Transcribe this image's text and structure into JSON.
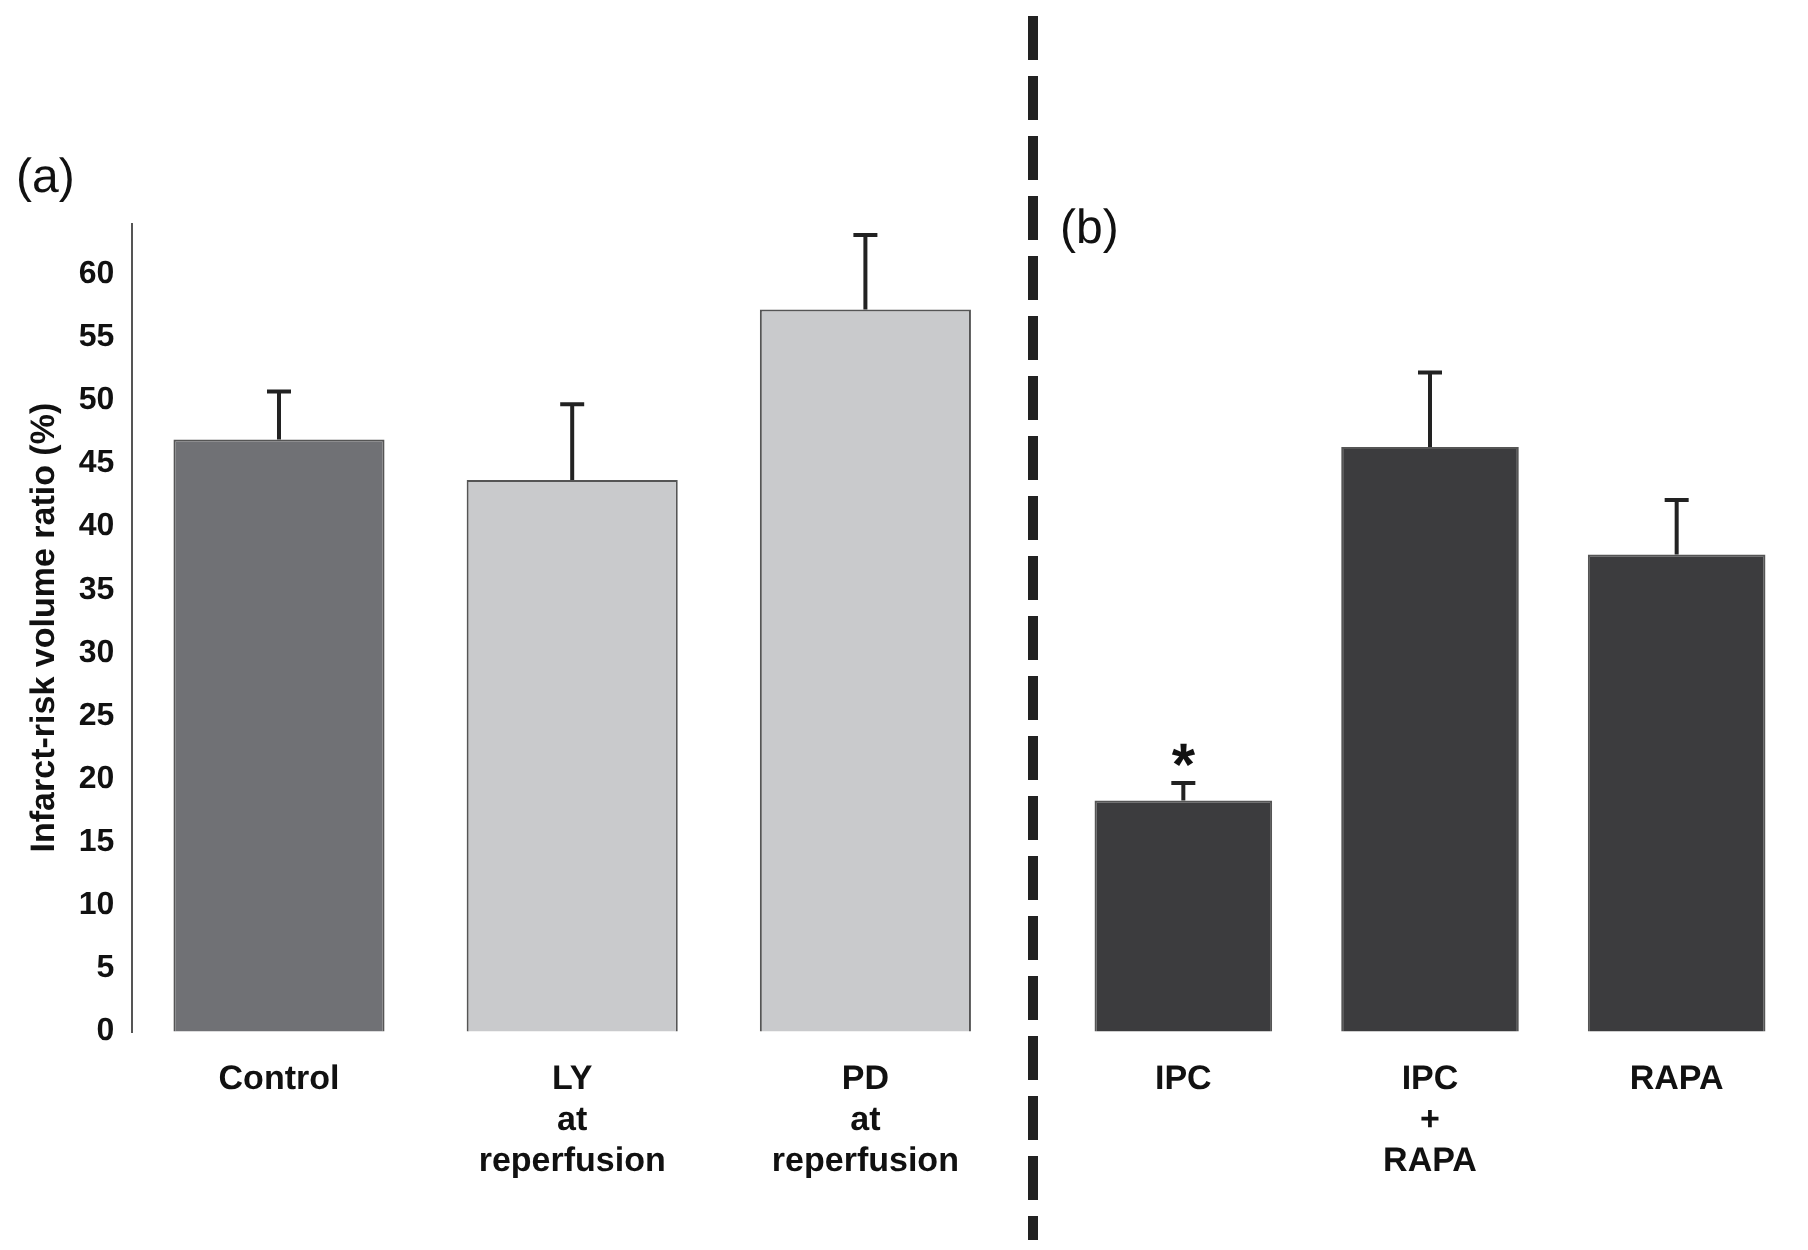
{
  "chart_data": [
    {
      "type": "bar",
      "title": "(a)",
      "ylabel": "Infarct-risk volume ratio (%)",
      "categories": [
        "Control",
        "LY\nat\nreperfusion",
        "PD\nat\nreperfusion"
      ],
      "values": [
        46.9,
        43.7,
        57.2
      ],
      "colors": [
        "#707175",
        "#c9cacc",
        "#c9cacc"
      ],
      "errors": [
        [
          46.9,
          50.7
        ],
        [
          43.7,
          49.7
        ],
        [
          57.2,
          63.1
        ]
      ],
      "ylim": [
        0,
        64
      ],
      "yticks": [
        0,
        5,
        10,
        15,
        20,
        25,
        30,
        35,
        40,
        45,
        50,
        55,
        60
      ],
      "grid": false,
      "legend": false
    },
    {
      "type": "bar",
      "title": "(b)",
      "categories": [
        "IPC",
        "IPC\n+\nRAPA",
        "RAPA"
      ],
      "values": [
        18.3,
        46.3,
        37.8
      ],
      "colors": [
        "#3c3c3e",
        "#3c3c3e",
        "#3c3c3e"
      ],
      "errors": [
        [
          18.3,
          19.7
        ],
        [
          46.3,
          52.2
        ],
        [
          37.8,
          42.1
        ]
      ],
      "annotations": [
        "*"
      ],
      "ylim": [
        0,
        60
      ],
      "yticks": [
        0,
        5,
        10,
        15,
        20,
        25,
        30,
        35,
        40,
        45,
        50,
        55,
        60
      ],
      "tick_labels": "x",
      "grid": false,
      "legend": false
    }
  ]
}
